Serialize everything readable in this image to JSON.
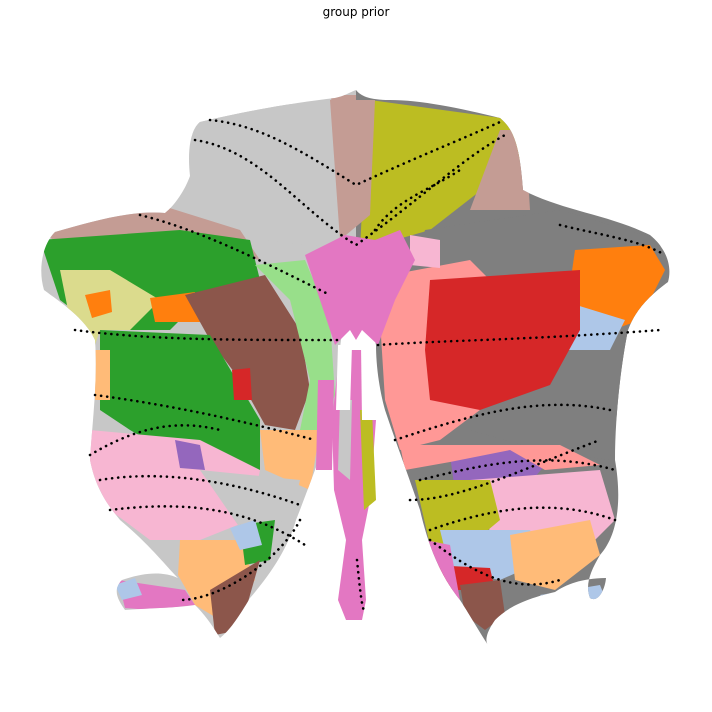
{
  "figure": {
    "title": "group prior"
  },
  "colors": {
    "background": "#ffffff",
    "boundary_dots": "#000000",
    "region_palette": [
      "#1f77b4",
      "#aec7e8",
      "#ff7f0e",
      "#ffbb78",
      "#2ca02c",
      "#98df8a",
      "#d62728",
      "#ff9896",
      "#9467bd",
      "#c5b0d5",
      "#8c564b",
      "#c49c94",
      "#e377c2",
      "#f7b6d2",
      "#7f7f7f",
      "#c7c7c7",
      "#bcbd22",
      "#dbdb8d",
      "#17becf",
      "#9edae5"
    ]
  }
}
